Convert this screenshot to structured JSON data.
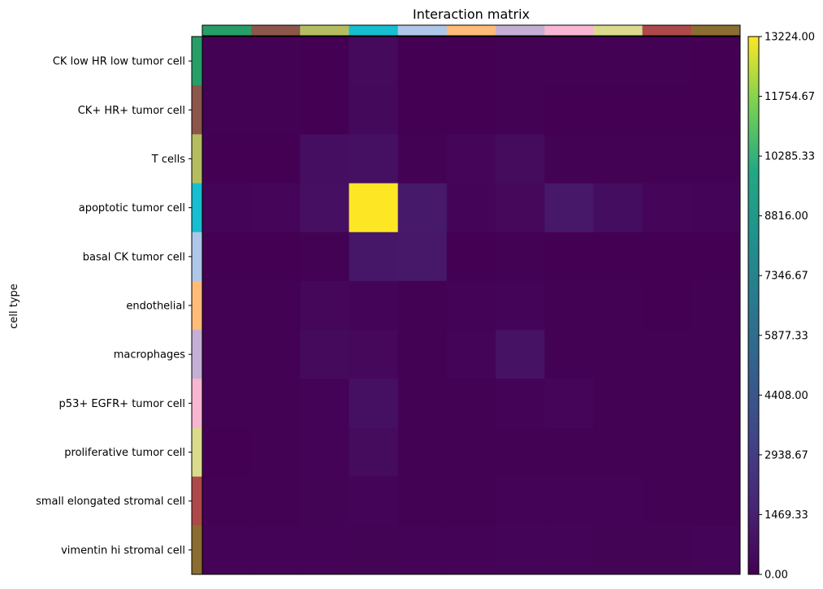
{
  "chart_data": {
    "type": "heatmap",
    "title": "Interaction matrix",
    "ylabel": "cell type",
    "xlabel": "",
    "categories": [
      "CK low HR low tumor cell",
      "CK+ HR+ tumor cell",
      "T cells",
      "apoptotic tumor cell",
      "basal CK tumor cell",
      "endothelial",
      "macrophages",
      "p53+ EGFR+ tumor cell",
      "proliferative tumor cell",
      "small elongated stromal cell",
      "vimentin hi stromal cell"
    ],
    "category_colors": [
      "#279e68",
      "#8c564b",
      "#b5bd61",
      "#17becf",
      "#aec7e8",
      "#ffbb78",
      "#c5b0d5",
      "#f7b6d2",
      "#dbdb8d",
      "#ad494a",
      "#8c6d31"
    ],
    "values": [
      [
        50,
        30,
        10,
        420,
        20,
        20,
        40,
        30,
        40,
        30,
        20
      ],
      [
        30,
        40,
        10,
        400,
        20,
        10,
        30,
        20,
        20,
        20,
        10
      ],
      [
        20,
        20,
        600,
        700,
        60,
        250,
        460,
        60,
        60,
        50,
        40
      ],
      [
        150,
        250,
        650,
        13224,
        1150,
        200,
        350,
        1100,
        550,
        250,
        200
      ],
      [
        20,
        20,
        30,
        1000,
        1050,
        20,
        40,
        20,
        20,
        20,
        20
      ],
      [
        30,
        30,
        300,
        200,
        60,
        100,
        130,
        30,
        30,
        20,
        40
      ],
      [
        40,
        60,
        420,
        330,
        60,
        150,
        800,
        60,
        60,
        50,
        60
      ],
      [
        30,
        30,
        100,
        700,
        40,
        30,
        100,
        250,
        30,
        30,
        40
      ],
      [
        20,
        30,
        90,
        520,
        40,
        30,
        50,
        50,
        60,
        40,
        40
      ],
      [
        50,
        60,
        120,
        150,
        60,
        50,
        100,
        100,
        90,
        40,
        60
      ],
      [
        100,
        110,
        100,
        120,
        90,
        100,
        160,
        130,
        120,
        120,
        130
      ]
    ],
    "colorbar": {
      "min": 0,
      "max": 13224,
      "colormap": "viridis",
      "tick_labels": [
        "0.00",
        "1469.33",
        "2938.67",
        "4408.00",
        "5877.33",
        "7346.67",
        "8816.00",
        "10285.33",
        "11754.67",
        "13224.00"
      ]
    }
  }
}
